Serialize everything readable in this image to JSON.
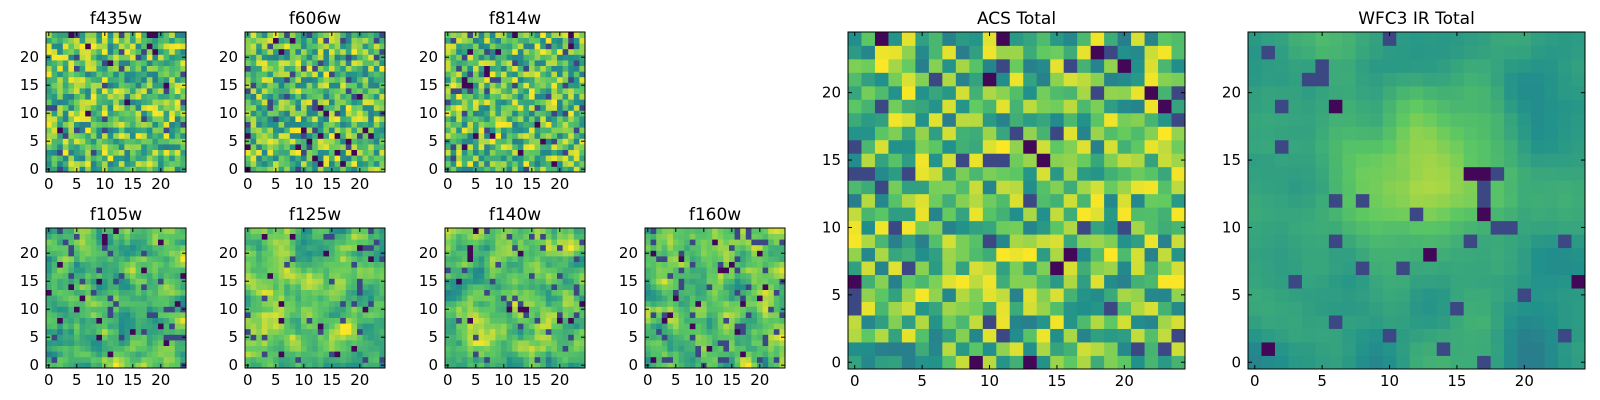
{
  "chart_data": [
    {
      "type": "heatmap",
      "title": "f435w",
      "grid_size": 25,
      "xlim": [
        0,
        24
      ],
      "ylim": [
        0,
        24
      ],
      "xticks": [
        "0",
        "5",
        "10",
        "15",
        "20"
      ],
      "yticks": [
        "0",
        "5",
        "10",
        "15",
        "20"
      ],
      "pattern": "noise",
      "seed": 11,
      "deep_pixel_rate": 0.02
    },
    {
      "type": "heatmap",
      "title": "f606w",
      "grid_size": 25,
      "xlim": [
        0,
        24
      ],
      "ylim": [
        0,
        24
      ],
      "xticks": [
        "0",
        "5",
        "10",
        "15",
        "20"
      ],
      "yticks": [
        "0",
        "5",
        "10",
        "15",
        "20"
      ],
      "pattern": "noise",
      "seed": 23,
      "deep_pixel_rate": 0.03
    },
    {
      "type": "heatmap",
      "title": "f814w",
      "grid_size": 25,
      "xlim": [
        0,
        24
      ],
      "ylim": [
        0,
        24
      ],
      "xticks": [
        "0",
        "5",
        "10",
        "15",
        "20"
      ],
      "yticks": [
        "0",
        "5",
        "10",
        "15",
        "20"
      ],
      "pattern": "noise",
      "seed": 37,
      "deep_pixel_rate": 0.03
    },
    {
      "type": "heatmap",
      "title": "f105w",
      "grid_size": 25,
      "xlim": [
        0,
        24
      ],
      "ylim": [
        0,
        24
      ],
      "xticks": [
        "0",
        "5",
        "10",
        "15",
        "20"
      ],
      "yticks": [
        "0",
        "5",
        "10",
        "15",
        "20"
      ],
      "pattern": "smooth",
      "seed": 41,
      "deep_pixel_rate": 0.03
    },
    {
      "type": "heatmap",
      "title": "f125w",
      "grid_size": 25,
      "xlim": [
        0,
        24
      ],
      "ylim": [
        0,
        24
      ],
      "xticks": [
        "0",
        "5",
        "10",
        "15",
        "20"
      ],
      "yticks": [
        "0",
        "5",
        "10",
        "15",
        "20"
      ],
      "pattern": "smooth",
      "seed": 53,
      "deep_pixel_rate": 0.03
    },
    {
      "type": "heatmap",
      "title": "f140w",
      "grid_size": 25,
      "xlim": [
        0,
        24
      ],
      "ylim": [
        0,
        24
      ],
      "xticks": [
        "0",
        "5",
        "10",
        "15",
        "20"
      ],
      "yticks": [
        "0",
        "5",
        "10",
        "15",
        "20"
      ],
      "pattern": "smooth",
      "seed": 67,
      "deep_pixel_rate": 0.02
    },
    {
      "type": "heatmap",
      "title": "f160w",
      "grid_size": 25,
      "xlim": [
        0,
        24
      ],
      "ylim": [
        0,
        24
      ],
      "xticks": [
        "0",
        "5",
        "10",
        "15",
        "20"
      ],
      "yticks": [
        "0",
        "5",
        "10",
        "15",
        "20"
      ],
      "pattern": "smooth",
      "seed": 79,
      "deep_pixel_rate": 0.04
    },
    {
      "type": "heatmap",
      "title": "ACS Total",
      "grid_size": 25,
      "xlim": [
        0,
        24
      ],
      "ylim": [
        0,
        24
      ],
      "xticks": [
        "0",
        "5",
        "10",
        "15",
        "20"
      ],
      "yticks": [
        "0",
        "5",
        "10",
        "15",
        "20"
      ],
      "pattern": "noise",
      "seed": 97,
      "deep_pixel_rate": 0.03
    },
    {
      "type": "heatmap",
      "title": "WFC3 IR Total",
      "grid_size": 25,
      "xlim": [
        0,
        24
      ],
      "ylim": [
        0,
        24
      ],
      "xticks": [
        "0",
        "5",
        "10",
        "15",
        "20"
      ],
      "yticks": [
        "0",
        "5",
        "10",
        "15",
        "20"
      ],
      "pattern": "blob",
      "seed": 131,
      "deep_pixel_rate": 0.02,
      "blob_center": [
        13,
        14
      ]
    }
  ],
  "colormap": [
    "#440154",
    "#3b528b",
    "#21918c",
    "#5ec962",
    "#fde725"
  ]
}
